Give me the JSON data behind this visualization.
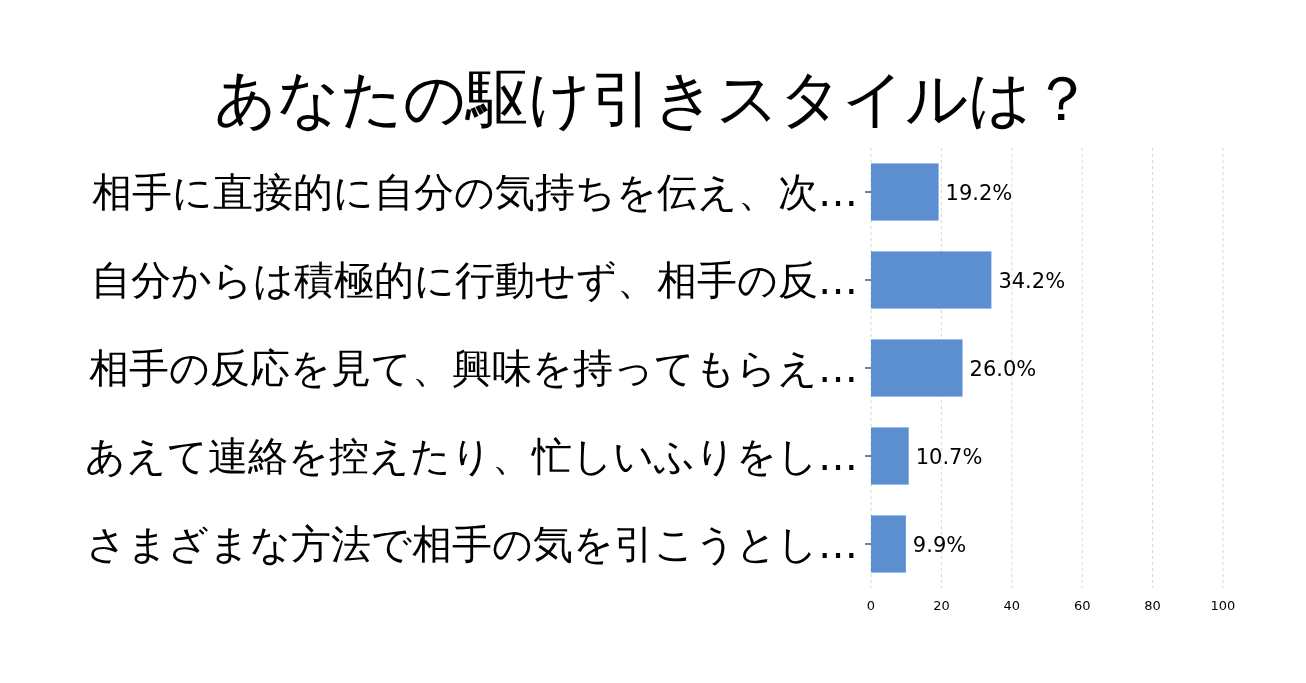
{
  "chart_data": {
    "type": "bar",
    "orientation": "horizontal",
    "title": "あなたの駆け引きスタイルは？",
    "categories": [
      "相手に直接的に自分の気持ちを伝え、次…",
      "自分からは積極的に行動せず、相手の反…",
      "相手の反応を見て、興味を持ってもらえ…",
      "あえて連絡を控えたり、忙しいふりをし…",
      "さまざまな方法で相手の気を引こうとし…"
    ],
    "values": [
      19.2,
      34.2,
      26.0,
      10.7,
      9.9
    ],
    "value_labels": [
      "19.2%",
      "34.2%",
      "26.0%",
      "10.7%",
      "9.9%"
    ],
    "color": "#5b8fd0",
    "xlim": [
      0,
      100
    ],
    "xticks": [
      0,
      20,
      40,
      60,
      80,
      100
    ],
    "grid": "x"
  }
}
